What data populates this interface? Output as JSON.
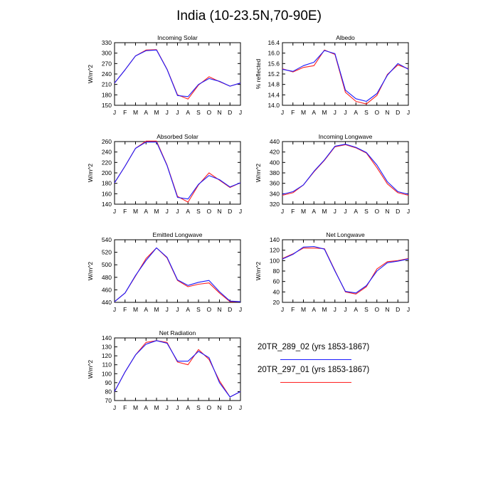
{
  "figure": {
    "title": "India (10-23.5N,70-90E)"
  },
  "colors": {
    "series_a": "#1a1aff",
    "series_b": "#ff2020",
    "axis": "#000000"
  },
  "legend": {
    "entries": [
      {
        "label": "20TR_289_02 (yrs 1853-1867)",
        "color": "#1a1aff"
      },
      {
        "label": "20TR_297_01 (yrs 1853-1867)",
        "color": "#ff2020"
      }
    ]
  },
  "chart_data": [
    {
      "type": "line",
      "title": "Incoming Solar",
      "xlabel": "",
      "ylabel": "W/m^2",
      "categories": [
        "J",
        "F",
        "M",
        "A",
        "M",
        "J",
        "J",
        "A",
        "S",
        "O",
        "N",
        "D",
        "J"
      ],
      "ylim": [
        150,
        330
      ],
      "yticks": [
        150,
        180,
        210,
        240,
        270,
        300,
        330
      ],
      "series": [
        {
          "name": "20TR_289_02 (yrs 1853-1867)",
          "color": "#1a1aff",
          "values": [
            214,
            252,
            292,
            307,
            309,
            253,
            178,
            175,
            210,
            227,
            219,
            205,
            214
          ]
        },
        {
          "name": "20TR_297_01 (yrs 1853-1867)",
          "color": "#ff2020",
          "values": [
            214,
            252,
            292,
            309,
            310,
            254,
            180,
            168,
            208,
            232,
            218,
            205,
            214
          ]
        }
      ]
    },
    {
      "type": "line",
      "title": "Albedo",
      "xlabel": "",
      "ylabel": "% reflected",
      "categories": [
        "J",
        "F",
        "M",
        "A",
        "M",
        "J",
        "J",
        "A",
        "S",
        "O",
        "N",
        "D",
        "J"
      ],
      "ylim": [
        14.0,
        16.4
      ],
      "yticks": [
        "14.0",
        "14.4",
        "14.8",
        "15.2",
        "15.6",
        "16.0",
        "16.4"
      ],
      "series": [
        {
          "name": "20TR_289_02 (yrs 1853-1867)",
          "color": "#1a1aff",
          "values": [
            15.38,
            15.3,
            15.52,
            15.65,
            16.1,
            15.98,
            14.58,
            14.25,
            14.15,
            14.45,
            15.15,
            15.6,
            15.38
          ]
        },
        {
          "name": "20TR_297_01 (yrs 1853-1867)",
          "color": "#ff2020",
          "values": [
            15.4,
            15.28,
            15.45,
            15.52,
            16.12,
            15.95,
            14.5,
            14.15,
            14.05,
            14.38,
            15.18,
            15.55,
            15.4
          ]
        }
      ]
    },
    {
      "type": "line",
      "title": "Absorbed Solar",
      "xlabel": "",
      "ylabel": "W/m^2",
      "categories": [
        "J",
        "F",
        "M",
        "A",
        "M",
        "J",
        "J",
        "A",
        "S",
        "O",
        "N",
        "D",
        "J"
      ],
      "ylim": [
        140,
        260
      ],
      "yticks": [
        140,
        160,
        180,
        200,
        220,
        240,
        260
      ],
      "series": [
        {
          "name": "20TR_289_02 (yrs 1853-1867)",
          "color": "#1a1aff",
          "values": [
            181,
            213,
            247,
            259,
            259,
            214,
            153,
            150,
            178,
            195,
            187,
            173,
            181
          ]
        },
        {
          "name": "20TR_297_01 (yrs 1853-1867)",
          "color": "#ff2020",
          "values": [
            181,
            213,
            247,
            261,
            261,
            215,
            155,
            144,
            177,
            200,
            186,
            172,
            181
          ]
        }
      ]
    },
    {
      "type": "line",
      "title": "Incoming Longwave",
      "xlabel": "",
      "ylabel": "W/m^2",
      "categories": [
        "J",
        "F",
        "M",
        "A",
        "M",
        "J",
        "J",
        "A",
        "S",
        "O",
        "N",
        "D",
        "J"
      ],
      "ylim": [
        320,
        440
      ],
      "yticks": [
        320,
        340,
        360,
        380,
        400,
        420,
        440
      ],
      "series": [
        {
          "name": "20TR_289_02 (yrs 1853-1867)",
          "color": "#1a1aff",
          "values": [
            339,
            344,
            357,
            383,
            405,
            431,
            435,
            429,
            419,
            395,
            363,
            344,
            339
          ]
        },
        {
          "name": "20TR_297_01 (yrs 1853-1867)",
          "color": "#ff2020",
          "values": [
            337,
            342,
            357,
            382,
            404,
            430,
            434,
            428,
            418,
            390,
            359,
            342,
            337
          ]
        }
      ]
    },
    {
      "type": "line",
      "title": "Emitted Longwave",
      "xlabel": "",
      "ylabel": "W/m^2",
      "categories": [
        "J",
        "F",
        "M",
        "A",
        "M",
        "J",
        "J",
        "A",
        "S",
        "O",
        "N",
        "D",
        "J"
      ],
      "ylim": [
        440,
        540
      ],
      "yticks": [
        440,
        460,
        480,
        500,
        520,
        540
      ],
      "series": [
        {
          "name": "20TR_289_02 (yrs 1853-1867)",
          "color": "#1a1aff",
          "values": [
            441,
            455,
            483,
            507,
            527,
            512,
            476,
            467,
            472,
            475,
            457,
            442,
            441
          ]
        },
        {
          "name": "20TR_297_01 (yrs 1853-1867)",
          "color": "#ff2020",
          "values": [
            441,
            455,
            482,
            510,
            527,
            511,
            475,
            465,
            469,
            471,
            455,
            441,
            441
          ]
        }
      ]
    },
    {
      "type": "line",
      "title": "Net Longwave",
      "xlabel": "",
      "ylabel": "W/m^2",
      "categories": [
        "J",
        "F",
        "M",
        "A",
        "M",
        "J",
        "J",
        "A",
        "S",
        "O",
        "N",
        "D",
        "J"
      ],
      "ylim": [
        20,
        140
      ],
      "yticks": [
        20,
        40,
        60,
        80,
        100,
        120,
        140
      ],
      "series": [
        {
          "name": "20TR_289_02 (yrs 1853-1867)",
          "color": "#1a1aff",
          "values": [
            103,
            112,
            126,
            127,
            122,
            80,
            41,
            38,
            52,
            80,
            96,
            99,
            103
          ]
        },
        {
          "name": "20TR_297_01 (yrs 1853-1867)",
          "color": "#ff2020",
          "values": [
            104,
            113,
            124,
            124,
            123,
            81,
            40,
            36,
            50,
            84,
            98,
            100,
            104
          ]
        }
      ]
    },
    {
      "type": "line",
      "title": "Net Radiation",
      "xlabel": "",
      "ylabel": "W/m^2",
      "categories": [
        "J",
        "F",
        "M",
        "A",
        "M",
        "J",
        "J",
        "A",
        "S",
        "O",
        "N",
        "D",
        "J"
      ],
      "ylim": [
        70,
        140
      ],
      "yticks": [
        70,
        80,
        90,
        100,
        110,
        120,
        130,
        140
      ],
      "series": [
        {
          "name": "20TR_289_02 (yrs 1853-1867)",
          "color": "#1a1aff",
          "values": [
            80,
            102,
            121,
            133,
            137,
            134,
            114,
            114,
            125,
            118,
            90,
            74,
            80
          ]
        },
        {
          "name": "20TR_297_01 (yrs 1853-1867)",
          "color": "#ff2020",
          "values": [
            80,
            102,
            121,
            135,
            137,
            135,
            113,
            110,
            127,
            116,
            92,
            74,
            80
          ]
        }
      ]
    }
  ]
}
